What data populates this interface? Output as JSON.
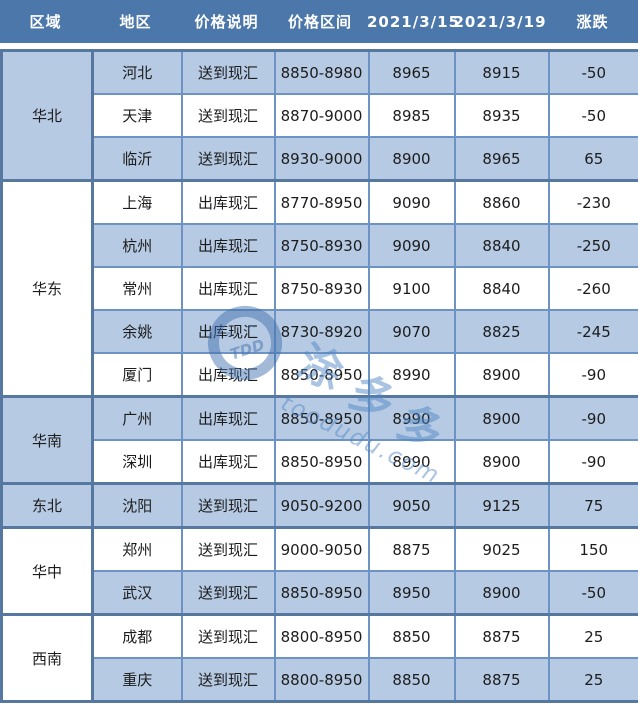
{
  "header": {
    "columns": [
      "区域",
      "地区",
      "价格说明",
      "价格区间",
      "2021/3/15",
      "2021/3/19",
      "涨跌"
    ]
  },
  "regions": [
    {
      "name": "华北",
      "shade": "blue",
      "rows": [
        {
          "area": "河北",
          "desc": "送到现汇",
          "range": "8850-8980",
          "p1": "8965",
          "p2": "8915",
          "chg": "-50",
          "shade": "blue"
        },
        {
          "area": "天津",
          "desc": "送到现汇",
          "range": "8870-9000",
          "p1": "8985",
          "p2": "8935",
          "chg": "-50",
          "shade": "white"
        },
        {
          "area": "临沂",
          "desc": "送到现汇",
          "range": "8930-9000",
          "p1": "8900",
          "p2": "8965",
          "chg": "65",
          "shade": "blue"
        }
      ]
    },
    {
      "name": "华东",
      "shade": "white",
      "rows": [
        {
          "area": "上海",
          "desc": "出库现汇",
          "range": "8770-8950",
          "p1": "9090",
          "p2": "8860",
          "chg": "-230",
          "shade": "white"
        },
        {
          "area": "杭州",
          "desc": "出库现汇",
          "range": "8750-8930",
          "p1": "9090",
          "p2": "8840",
          "chg": "-250",
          "shade": "blue"
        },
        {
          "area": "常州",
          "desc": "出库现汇",
          "range": "8750-8930",
          "p1": "9100",
          "p2": "8840",
          "chg": "-260",
          "shade": "white"
        },
        {
          "area": "余姚",
          "desc": "出库现汇",
          "range": "8730-8920",
          "p1": "9070",
          "p2": "8825",
          "chg": "-245",
          "shade": "blue"
        },
        {
          "area": "厦门",
          "desc": "出库现汇",
          "range": "8850-8950",
          "p1": "8990",
          "p2": "8900",
          "chg": "-90",
          "shade": "white"
        }
      ]
    },
    {
      "name": "华南",
      "shade": "blue",
      "rows": [
        {
          "area": "广州",
          "desc": "出库现汇",
          "range": "8850-8950",
          "p1": "8990",
          "p2": "8900",
          "chg": "-90",
          "shade": "blue"
        },
        {
          "area": "深圳",
          "desc": "出库现汇",
          "range": "8850-8950",
          "p1": "8990",
          "p2": "8900",
          "chg": "-90",
          "shade": "white"
        }
      ]
    },
    {
      "name": "东北",
      "shade": "blue",
      "rows": [
        {
          "area": "沈阳",
          "desc": "送到现汇",
          "range": "9050-9200",
          "p1": "9050",
          "p2": "9125",
          "chg": "75",
          "shade": "blue"
        }
      ]
    },
    {
      "name": "华中",
      "shade": "white",
      "rows": [
        {
          "area": "郑州",
          "desc": "送到现汇",
          "range": "9000-9050",
          "p1": "8875",
          "p2": "9025",
          "chg": "150",
          "shade": "white"
        },
        {
          "area": "武汉",
          "desc": "送到现汇",
          "range": "8850-8950",
          "p1": "8950",
          "p2": "8900",
          "chg": "-50",
          "shade": "blue"
        }
      ]
    },
    {
      "name": "西南",
      "shade": "white",
      "rows": [
        {
          "area": "成都",
          "desc": "送到现汇",
          "range": "8800-8950",
          "p1": "8850",
          "p2": "8875",
          "chg": "25",
          "shade": "white"
        },
        {
          "area": "重庆",
          "desc": "送到现汇",
          "range": "8800-8950",
          "p1": "8850",
          "p2": "8875",
          "chg": "25",
          "shade": "blue"
        }
      ]
    }
  ],
  "watermark": {
    "logo_text": "TDD",
    "logo_eyes": "^ ^",
    "brand_chars": [
      "涂",
      "多",
      "多"
    ],
    "site": "toodudu.com"
  },
  "colors": {
    "header_bg": "#4c77aa",
    "header_text": "#ffffff",
    "row_blue": "#b6cae3",
    "row_white": "#ffffff",
    "border_light": "#6d93c4",
    "border_dark": "#56779f",
    "cell_text": "#1c1c1c",
    "watermark": "#4e86c6"
  }
}
